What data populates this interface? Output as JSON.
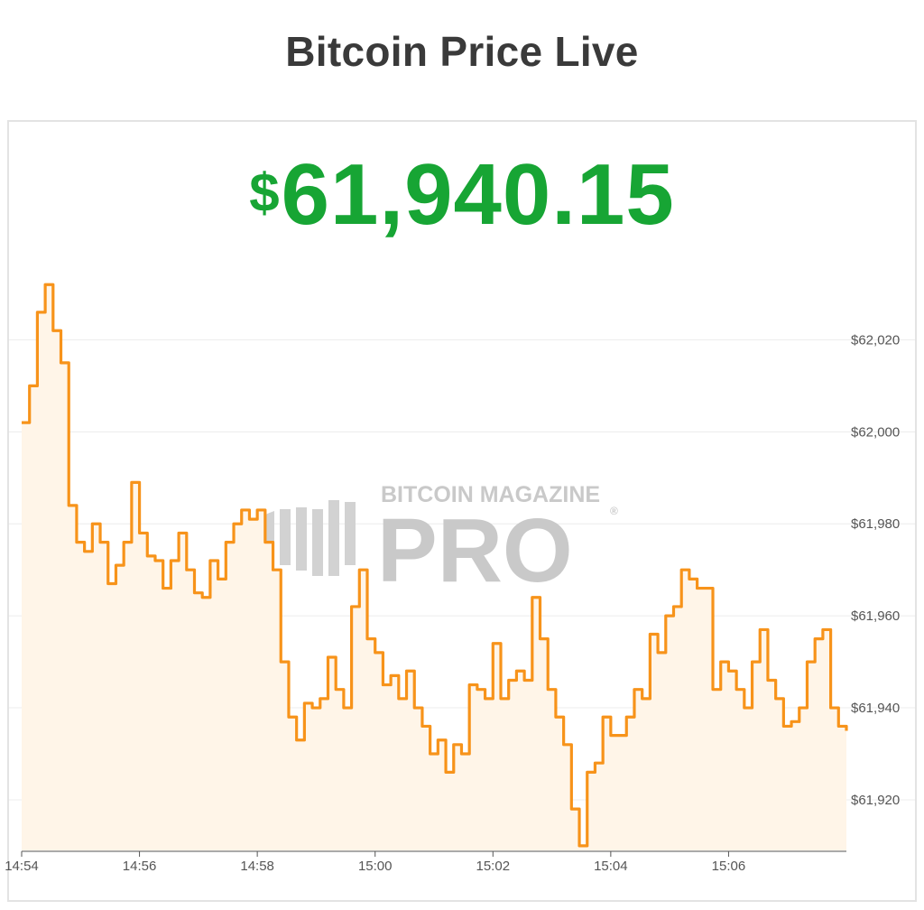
{
  "page": {
    "title": "Bitcoin Price Live"
  },
  "price": {
    "currency": "$",
    "amount": "61,940.15"
  },
  "watermark": {
    "top": "BITCOIN MAGAZINE",
    "main": "PRO",
    "mark": "®"
  },
  "colors": {
    "line": "#f7931a",
    "fill": "#fff5e8",
    "price": "#17a534",
    "grid": "#ececec"
  },
  "chart_data": {
    "type": "area",
    "title": "",
    "xlabel": "",
    "ylabel": "",
    "x_ticks": [
      "14:54",
      "14:56",
      "14:58",
      "15:00",
      "15:02",
      "15:04",
      "15:06"
    ],
    "y_ticks": [
      "$61,920",
      "$61,940",
      "$61,960",
      "$61,980",
      "$62,000",
      "$62,020"
    ],
    "y_tick_values": [
      61920,
      61940,
      61960,
      61980,
      62000,
      62020
    ],
    "xlim": [
      "14:54",
      "15:08"
    ],
    "ylim": [
      61909,
      62035
    ],
    "grid": "horizontal",
    "y_axis_position": "right",
    "series": [
      {
        "x": [
          "14:54:00",
          "14:54:08",
          "14:54:16",
          "14:54:24",
          "14:54:32",
          "14:54:40",
          "14:54:48",
          "14:54:56",
          "14:55:04",
          "14:55:12",
          "14:55:20",
          "14:55:28",
          "14:55:36",
          "14:55:44",
          "14:55:52",
          "14:56:00",
          "14:56:08",
          "14:56:16",
          "14:56:24",
          "14:56:32",
          "14:56:40",
          "14:56:48",
          "14:56:56",
          "14:57:04",
          "14:57:12",
          "14:57:20",
          "14:57:28",
          "14:57:36",
          "14:57:44",
          "14:57:52",
          "14:58:00",
          "14:58:08",
          "14:58:16",
          "14:58:24",
          "14:58:32",
          "14:58:40",
          "14:58:48",
          "14:58:56",
          "14:59:04",
          "14:59:12",
          "14:59:20",
          "14:59:28",
          "14:59:36",
          "14:59:44",
          "14:59:52",
          "15:00:00",
          "15:00:08",
          "15:00:16",
          "15:00:24",
          "15:00:32",
          "15:00:40",
          "15:00:48",
          "15:00:56",
          "15:01:04",
          "15:01:12",
          "15:01:20",
          "15:01:28",
          "15:01:36",
          "15:01:44",
          "15:01:52",
          "15:02:00",
          "15:02:08",
          "15:02:16",
          "15:02:24",
          "15:02:32",
          "15:02:40",
          "15:02:48",
          "15:02:56",
          "15:03:04",
          "15:03:12",
          "15:03:20",
          "15:03:28",
          "15:03:36",
          "15:03:44",
          "15:03:52",
          "15:04:00",
          "15:04:08",
          "15:04:16",
          "15:04:24",
          "15:04:32",
          "15:04:40",
          "15:04:48",
          "15:04:56",
          "15:05:04",
          "15:05:12",
          "15:05:20",
          "15:05:28",
          "15:05:36",
          "15:05:44",
          "15:05:52",
          "15:06:00",
          "15:06:08",
          "15:06:16",
          "15:06:24",
          "15:06:32",
          "15:06:40",
          "15:06:48",
          "15:06:56",
          "15:07:04",
          "15:07:12",
          "15:07:20",
          "15:07:28",
          "15:07:36",
          "15:07:44",
          "15:07:52",
          "15:08:00"
        ],
        "values": [
          62002,
          62010,
          62026,
          62032,
          62022,
          62015,
          61984,
          61976,
          61974,
          61980,
          61976,
          61967,
          61971,
          61976,
          61989,
          61978,
          61973,
          61972,
          61966,
          61972,
          61978,
          61970,
          61965,
          61964,
          61972,
          61968,
          61976,
          61980,
          61983,
          61981,
          61983,
          61976,
          61970,
          61950,
          61938,
          61933,
          61941,
          61940,
          61942,
          61951,
          61944,
          61940,
          61962,
          61970,
          61955,
          61952,
          61945,
          61947,
          61942,
          61948,
          61940,
          61936,
          61930,
          61933,
          61926,
          61932,
          61930,
          61945,
          61944,
          61942,
          61954,
          61942,
          61946,
          61948,
          61946,
          61964,
          61955,
          61944,
          61938,
          61932,
          61918,
          61910,
          61926,
          61928,
          61938,
          61934,
          61934,
          61938,
          61944,
          61942,
          61956,
          61952,
          61960,
          61962,
          61970,
          61968,
          61966,
          61966,
          61944,
          61950,
          61948,
          61944,
          61940,
          61950,
          61957,
          61946,
          61942,
          61936,
          61937,
          61940,
          61950,
          61955,
          61957,
          61940,
          61936,
          61935
        ]
      }
    ]
  }
}
